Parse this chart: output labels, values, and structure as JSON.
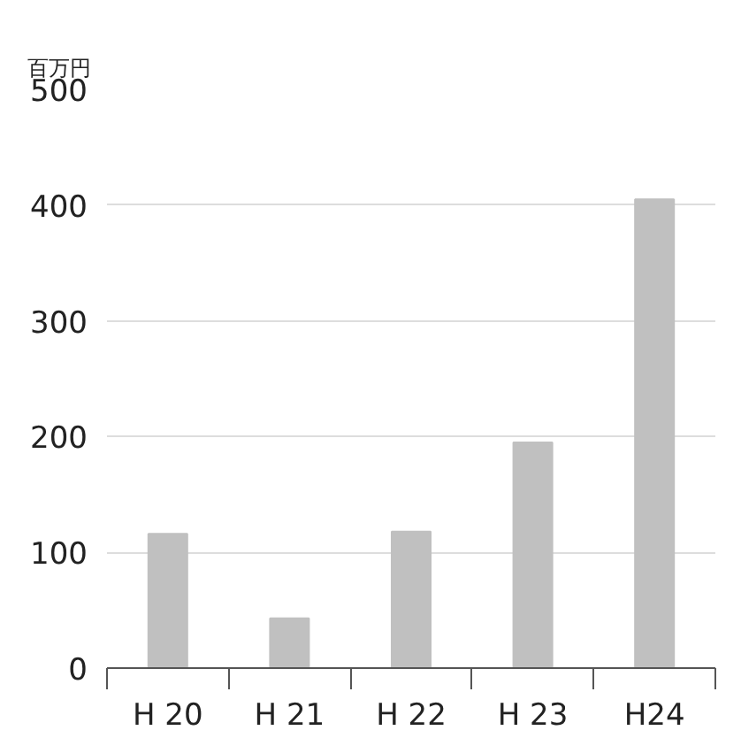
{
  "chart_data": {
    "type": "bar",
    "ylabel": "百万円",
    "categories": [
      "H 20",
      "H 21",
      "H 22",
      "H 23",
      "H24"
    ],
    "values": [
      116,
      43,
      118,
      195,
      405
    ],
    "color": "#c0c0c0",
    "ylim": [
      0,
      500
    ],
    "yticks": [
      0,
      100,
      200,
      300,
      400,
      500
    ],
    "grid": "y"
  }
}
